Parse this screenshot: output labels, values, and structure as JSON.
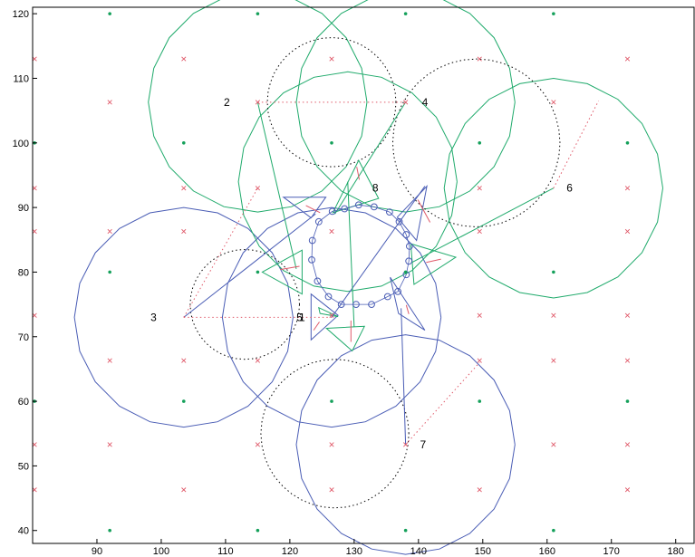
{
  "chart_data": {
    "type": "scatter",
    "title": "",
    "xlabel": "",
    "ylabel": "",
    "xlim": [
      80,
      183
    ],
    "ylim": [
      38,
      121
    ],
    "xticks": [
      90,
      100,
      110,
      120,
      130,
      140,
      150,
      160,
      170,
      180
    ],
    "yticks": [
      40,
      50,
      60,
      70,
      80,
      90,
      100,
      110,
      120
    ],
    "grid": false,
    "legend": "none",
    "colors": {
      "green": "#1faa6b",
      "blue": "#4a5db5",
      "red": "#e05a6a",
      "black": "#000000",
      "green_dot": "#14a05a"
    },
    "green_points": [
      [
        92,
        120
      ],
      [
        115,
        120
      ],
      [
        138,
        120
      ],
      [
        161,
        120
      ],
      [
        80.3,
        100
      ],
      [
        103.5,
        100
      ],
      [
        126.5,
        100
      ],
      [
        149.5,
        100
      ],
      [
        172.5,
        100
      ],
      [
        92,
        80
      ],
      [
        115,
        80
      ],
      [
        138,
        80
      ],
      [
        161,
        80
      ],
      [
        80.3,
        60
      ],
      [
        103.5,
        60
      ],
      [
        126.5,
        60
      ],
      [
        149.5,
        60
      ],
      [
        172.5,
        60
      ],
      [
        92,
        40
      ],
      [
        115,
        40
      ],
      [
        138,
        40
      ],
      [
        161,
        40
      ]
    ],
    "red_x_points": [
      [
        80.3,
        113
      ],
      [
        103.5,
        113
      ],
      [
        126.5,
        113
      ],
      [
        149.5,
        113
      ],
      [
        172.5,
        113
      ],
      [
        92,
        106.3
      ],
      [
        115,
        106.3
      ],
      [
        138,
        106.3
      ],
      [
        161,
        106.3
      ],
      [
        80.3,
        93
      ],
      [
        103.5,
        93
      ],
      [
        115,
        93
      ],
      [
        149.5,
        93
      ],
      [
        172.5,
        93
      ],
      [
        80.3,
        86.3
      ],
      [
        92,
        86.3
      ],
      [
        103.5,
        86.3
      ],
      [
        126.5,
        86.3
      ],
      [
        149.5,
        86.3
      ],
      [
        172.5,
        86.3
      ],
      [
        80.3,
        73.3
      ],
      [
        126.5,
        73.3
      ],
      [
        149.5,
        73.3
      ],
      [
        161,
        73.3
      ],
      [
        172.5,
        73.3
      ],
      [
        92,
        66.3
      ],
      [
        103.5,
        66.3
      ],
      [
        115,
        66.3
      ],
      [
        149.5,
        66.3
      ],
      [
        161,
        66.3
      ],
      [
        172.5,
        66.3
      ],
      [
        80.3,
        53.3
      ],
      [
        92,
        53.3
      ],
      [
        115,
        53.3
      ],
      [
        126.5,
        53.3
      ],
      [
        138,
        53.3
      ],
      [
        161,
        53.3
      ],
      [
        172.5,
        53.3
      ],
      [
        80.3,
        46.3
      ],
      [
        103.5,
        46.3
      ],
      [
        126.5,
        46.3
      ],
      [
        149.5,
        46.3
      ],
      [
        172.5,
        46.3
      ]
    ],
    "big_circles": [
      {
        "cx": 115,
        "cy": 106.3,
        "r": 17,
        "color": "green"
      },
      {
        "cx": 138,
        "cy": 106.3,
        "r": 17,
        "color": "green"
      },
      {
        "cx": 161,
        "cy": 93,
        "r": 17,
        "color": "green"
      },
      {
        "cx": 126.5,
        "cy": 73,
        "r": 17,
        "color": "blue"
      },
      {
        "cx": 103.5,
        "cy": 73,
        "r": 17,
        "color": "blue"
      },
      {
        "cx": 138,
        "cy": 53.3,
        "r": 17,
        "color": "blue"
      },
      {
        "cx": 129,
        "cy": 94,
        "r": 17,
        "color": "green"
      }
    ],
    "dotted_circles": [
      {
        "cx": 126.5,
        "cy": 106.3,
        "r": 10
      },
      {
        "cx": 149,
        "cy": 100,
        "r": 13
      },
      {
        "cx": 113,
        "cy": 75,
        "r": 8.5
      },
      {
        "cx": 127,
        "cy": 55,
        "r": 11.5
      }
    ],
    "ring_markers": [
      [
        130.7,
        90.4
      ],
      [
        133.1,
        90.1
      ],
      [
        135.5,
        89.3
      ],
      [
        137,
        87.8
      ],
      [
        138.1,
        85.8
      ],
      [
        138.6,
        84
      ],
      [
        138.5,
        81.7
      ],
      [
        138.1,
        79.6
      ],
      [
        136.8,
        77
      ],
      [
        135.2,
        76.2
      ],
      [
        132.7,
        75
      ],
      [
        130.3,
        75
      ],
      [
        128,
        75
      ],
      [
        126,
        76.2
      ],
      [
        124.3,
        78.6
      ],
      [
        123.4,
        81.9
      ],
      [
        123.5,
        84.9
      ],
      [
        124.5,
        87.8
      ],
      [
        126.6,
        89.4
      ],
      [
        128.5,
        89.8
      ]
    ],
    "triangles": [
      {
        "points": [
          [
            119,
            91.6
          ],
          [
            123.3,
            88.4
          ],
          [
            125.6,
            91.6
          ]
        ],
        "color": "blue"
      },
      {
        "points": [
          [
            126.7,
            89.2
          ],
          [
            130.7,
            97.3
          ],
          [
            133.8,
            91.4
          ]
        ],
        "color": "green"
      },
      {
        "points": [
          [
            136.7,
            88.5
          ],
          [
            141.3,
            93.3
          ],
          [
            139.7,
            84.9
          ]
        ],
        "color": "blue"
      },
      {
        "points": [
          [
            138.8,
            84.4
          ],
          [
            145.8,
            82.3
          ],
          [
            139.3,
            78.1
          ]
        ],
        "color": "green"
      },
      {
        "points": [
          [
            135.6,
            79.2
          ],
          [
            141,
            71
          ],
          [
            136.9,
            73.6
          ]
        ],
        "color": "blue"
      },
      {
        "points": [
          [
            125.7,
            71.3
          ],
          [
            131.6,
            71.6
          ],
          [
            129.7,
            67.8
          ]
        ],
        "color": "green"
      },
      {
        "points": [
          [
            123.3,
            76.6
          ],
          [
            123.3,
            69.5
          ],
          [
            127.5,
            73.3
          ]
        ],
        "color": "blue"
      },
      {
        "points": [
          [
            115.7,
            80
          ],
          [
            121.9,
            83.4
          ],
          [
            121.9,
            76.6
          ]
        ],
        "color": "green"
      },
      {
        "points": [
          [
            124.7,
            73.6
          ],
          [
            127.5,
            73.1
          ],
          [
            124.5,
            74.5
          ]
        ],
        "color": "green"
      }
    ],
    "solid_lines": [
      {
        "from": [
          115,
          106.3
        ],
        "to": [
          121,
          80.5
        ],
        "color": "green"
      },
      {
        "from": [
          138,
          106.3
        ],
        "to": [
          127,
          89
        ],
        "color": "green"
      },
      {
        "from": [
          161,
          93
        ],
        "to": [
          139,
          81.5
        ],
        "color": "green"
      },
      {
        "from": [
          138,
          53.3
        ],
        "to": [
          137.3,
          74.4
        ],
        "color": "blue"
      },
      {
        "from": [
          103.5,
          73
        ],
        "to": [
          124,
          89
        ],
        "color": "blue"
      },
      {
        "from": [
          126.5,
          73
        ],
        "to": [
          141,
          93.3
        ],
        "color": "blue"
      },
      {
        "from": [
          129,
          94
        ],
        "to": [
          130,
          71.5
        ],
        "color": "green"
      }
    ],
    "dotted_red_lines": [
      {
        "from": [
          115,
          106.3
        ],
        "to": [
          138,
          106.3
        ]
      },
      {
        "from": [
          103.5,
          73
        ],
        "to": [
          126.5,
          73
        ]
      },
      {
        "from": [
          103.5,
          73
        ],
        "to": [
          115,
          93
        ]
      },
      {
        "from": [
          138,
          53.3
        ],
        "to": [
          149.5,
          66
        ]
      },
      {
        "from": [
          161,
          93
        ],
        "to": [
          168,
          106.5
        ]
      }
    ],
    "red_segments": [
      {
        "from": [
          122.5,
          90.3
        ],
        "to": [
          124.7,
          89.2
        ]
      },
      {
        "from": [
          130.4,
          96.3
        ],
        "to": [
          130.8,
          94.3
        ]
      },
      {
        "from": [
          139.9,
          91.2
        ],
        "to": [
          141.8,
          87.7
        ]
      },
      {
        "from": [
          143.5,
          82
        ],
        "to": [
          141.2,
          81.5
        ]
      },
      {
        "from": [
          138.1,
          74.9
        ],
        "to": [
          138.5,
          73.5
        ]
      },
      {
        "from": [
          129.5,
          69.2
        ],
        "to": [
          129.5,
          72.5
        ]
      },
      {
        "from": [
          123.7,
          71
        ],
        "to": [
          124.6,
          72.3
        ]
      },
      {
        "from": [
          121.5,
          80.9
        ],
        "to": [
          118.5,
          80.4
        ]
      }
    ],
    "labels": [
      {
        "text": "2",
        "x": 110.2,
        "y": 106.3
      },
      {
        "text": "4",
        "x": 141,
        "y": 106.3
      },
      {
        "text": "8",
        "x": 133.3,
        "y": 93
      },
      {
        "text": "6",
        "x": 163.5,
        "y": 93
      },
      {
        "text": "3",
        "x": 98.8,
        "y": 73
      },
      {
        "text": "5",
        "x": 121.5,
        "y": 73
      },
      {
        "text": "1",
        "x": 121.9,
        "y": 73
      },
      {
        "text": "7",
        "x": 140.7,
        "y": 53.3
      }
    ]
  }
}
